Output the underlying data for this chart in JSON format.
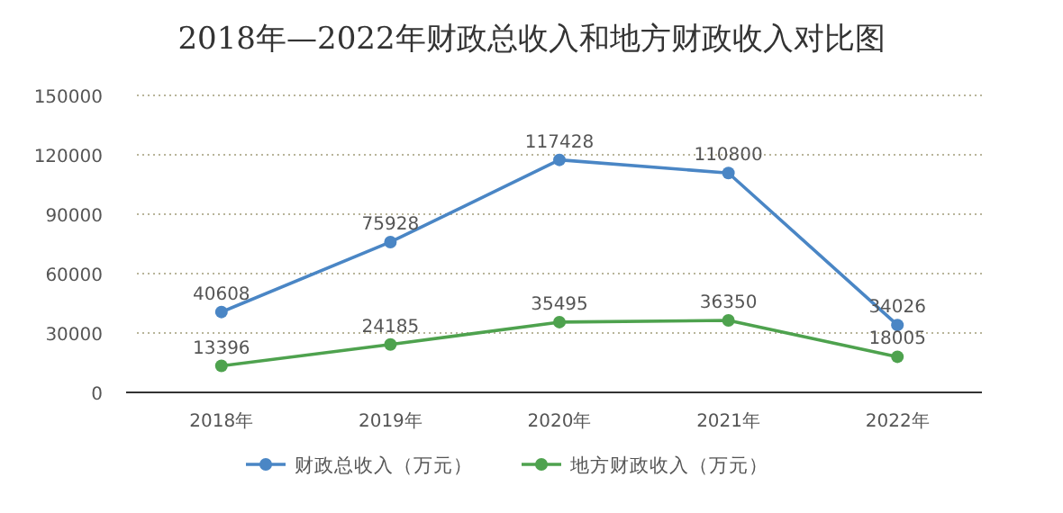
{
  "chart_data": {
    "type": "line",
    "title": "2018年—2022年财政总收入和地方财政收入对比图",
    "categories": [
      "2018年",
      "2019年",
      "2020年",
      "2021年",
      "2022年"
    ],
    "series": [
      {
        "name": "财政总收入（万元）",
        "color": "#4a86c5",
        "values": [
          40608,
          75928,
          117428,
          110800,
          34026
        ]
      },
      {
        "name": "地方财政收入（万元）",
        "color": "#4ea24e",
        "values": [
          13396,
          24185,
          35495,
          36350,
          18005
        ]
      }
    ],
    "ylim": [
      0,
      150000
    ],
    "yticks": [
      0,
      30000,
      60000,
      90000,
      120000,
      150000
    ],
    "grid": "y",
    "legend": "bottom",
    "marker": "circle",
    "line_style": "solid",
    "data_labels": true
  }
}
